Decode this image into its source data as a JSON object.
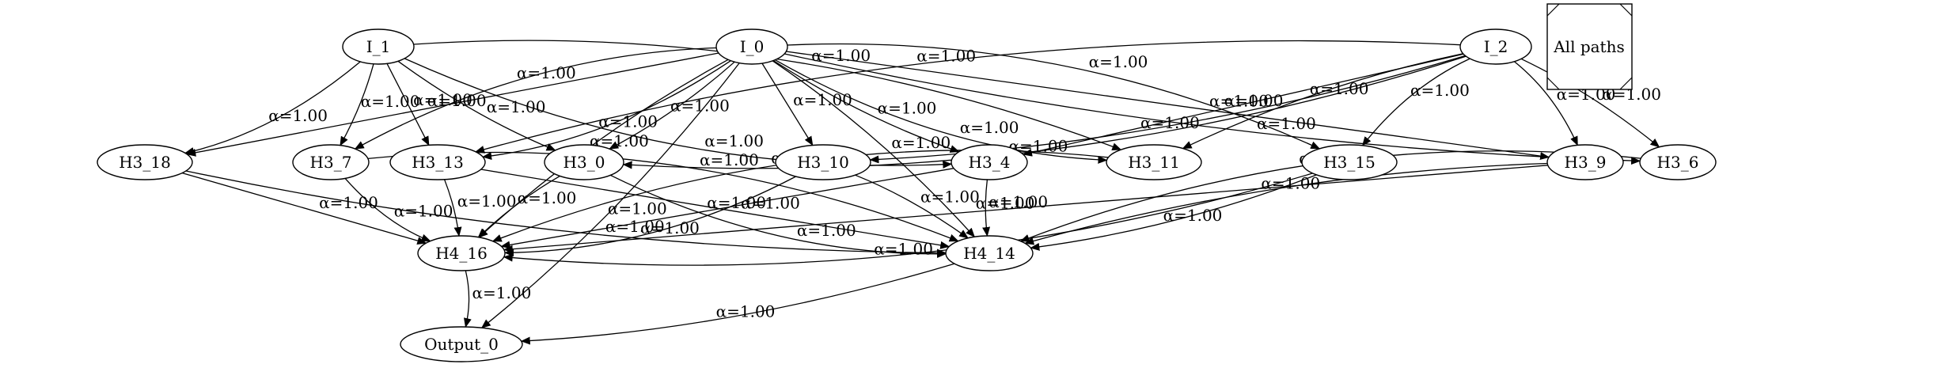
{
  "legend": {
    "label": "All paths"
  },
  "nodes": [
    {
      "id": "I_1",
      "label": "I_1"
    },
    {
      "id": "I_0",
      "label": "I_0"
    },
    {
      "id": "I_2",
      "label": "I_2"
    },
    {
      "id": "H3_18",
      "label": "H3_18"
    },
    {
      "id": "H3_7",
      "label": "H3_7"
    },
    {
      "id": "H3_13",
      "label": "H3_13"
    },
    {
      "id": "H3_0",
      "label": "H3_0"
    },
    {
      "id": "H3_10",
      "label": "H3_10"
    },
    {
      "id": "H3_4",
      "label": "H3_4"
    },
    {
      "id": "H3_11",
      "label": "H3_11"
    },
    {
      "id": "H3_15",
      "label": "H3_15"
    },
    {
      "id": "H3_9",
      "label": "H3_9"
    },
    {
      "id": "H3_6",
      "label": "H3_6"
    },
    {
      "id": "H4_16",
      "label": "H4_16"
    },
    {
      "id": "H4_14",
      "label": "H4_14"
    },
    {
      "id": "Output_0",
      "label": "Output_0"
    }
  ],
  "edges": [
    {
      "from": "I_1",
      "to": "H3_18",
      "label": "α=1.00"
    },
    {
      "from": "I_1",
      "to": "H3_7",
      "label": "α=1.00"
    },
    {
      "from": "I_1",
      "to": "H3_13",
      "label": "α=1.00"
    },
    {
      "from": "I_1",
      "to": "H3_0",
      "label": "α=1.00"
    },
    {
      "from": "I_1",
      "to": "H3_4",
      "label": "α=1.00"
    },
    {
      "from": "I_1",
      "to": "H3_11",
      "label": "α=1.00"
    },
    {
      "from": "I_0",
      "to": "Output_0",
      "label": "α=1.00"
    },
    {
      "from": "I_0",
      "to": "H3_18",
      "label": "α=1.00"
    },
    {
      "from": "I_0",
      "to": "H4_16",
      "label": "α=1.00"
    },
    {
      "from": "I_0",
      "to": "H3_7",
      "label": "α=1.00"
    },
    {
      "from": "I_0",
      "to": "H3_13",
      "label": "α=1.00"
    },
    {
      "from": "I_0",
      "to": "H3_0",
      "label": "α=1.00"
    },
    {
      "from": "I_0",
      "to": "H3_10",
      "label": "α=1.00"
    },
    {
      "from": "I_0",
      "to": "H3_4",
      "label": "α=1.00"
    },
    {
      "from": "I_0",
      "to": "H3_11",
      "label": "α=1.00"
    },
    {
      "from": "I_0",
      "to": "H3_15",
      "label": "α=1.00"
    },
    {
      "from": "I_0",
      "to": "H4_14",
      "label": "α=1.00"
    },
    {
      "from": "I_0",
      "to": "H3_9",
      "label": "α=1.00"
    },
    {
      "from": "I_0",
      "to": "H3_6",
      "label": "α=1.00"
    },
    {
      "from": "I_2",
      "to": "H3_13",
      "label": "α=1.00"
    },
    {
      "from": "I_2",
      "to": "H3_0",
      "label": "α=1.00"
    },
    {
      "from": "I_2",
      "to": "H3_10",
      "label": "α=1.00"
    },
    {
      "from": "I_2",
      "to": "H3_4",
      "label": "α=1.00"
    },
    {
      "from": "I_2",
      "to": "H3_11",
      "label": "α=1.00"
    },
    {
      "from": "I_2",
      "to": "H3_15",
      "label": "α=1.00"
    },
    {
      "from": "I_2",
      "to": "H3_9",
      "label": "α=1.00"
    },
    {
      "from": "I_2",
      "to": "H3_6",
      "label": "α=1.00"
    },
    {
      "from": "H3_18",
      "to": "H4_16",
      "label": "α=1.00"
    },
    {
      "from": "H3_18",
      "to": "H4_14",
      "label": "α=1.00"
    },
    {
      "from": "H3_7",
      "to": "H4_16",
      "label": "α=1.00"
    },
    {
      "from": "H3_7",
      "to": "H4_14",
      "label": "α=1.00"
    },
    {
      "from": "H3_13",
      "to": "H4_16",
      "label": "α=1.00"
    },
    {
      "from": "H3_13",
      "to": "H4_14",
      "label": "α=1.00"
    },
    {
      "from": "H3_0",
      "to": "H4_16",
      "label": "α=1.00"
    },
    {
      "from": "H3_0",
      "to": "H4_14",
      "label": "α=1.00"
    },
    {
      "from": "H3_10",
      "to": "H4_16",
      "label": "α=1.00"
    },
    {
      "from": "H3_10",
      "to": "H4_14",
      "label": "α=1.00"
    },
    {
      "from": "H3_4",
      "to": "H4_16",
      "label": "α=1.00"
    },
    {
      "from": "H3_4",
      "to": "H4_14",
      "label": "α=1.00"
    },
    {
      "from": "H3_11",
      "to": "H4_16",
      "label": "α=1.00"
    },
    {
      "from": "H3_15",
      "to": "H4_16",
      "label": "α=1.00"
    },
    {
      "from": "H3_15",
      "to": "H4_14",
      "label": "α=1.00"
    },
    {
      "from": "H3_9",
      "to": "H4_16",
      "label": "α=1.00"
    },
    {
      "from": "H3_9",
      "to": "H4_14",
      "label": "α=1.00"
    },
    {
      "from": "H3_6",
      "to": "H4_14",
      "label": "α=1.00"
    },
    {
      "from": "H4_16",
      "to": "Output_0",
      "label": "α=1.00"
    },
    {
      "from": "H4_14",
      "to": "Output_0",
      "label": "α=1.00"
    }
  ]
}
